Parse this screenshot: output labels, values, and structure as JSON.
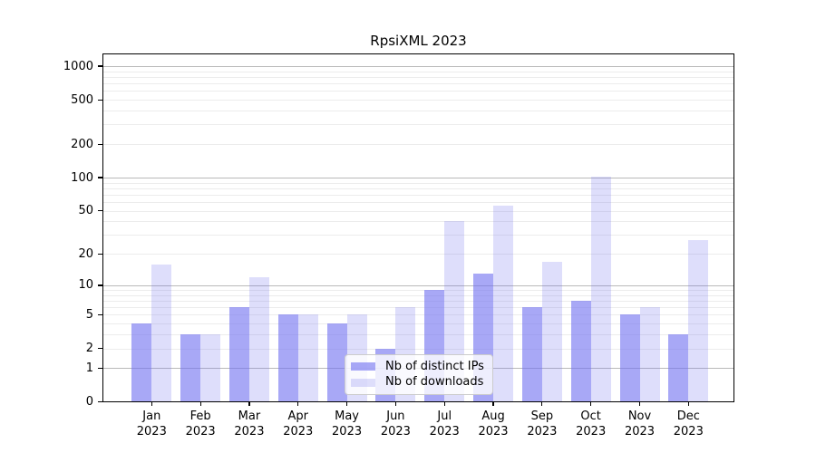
{
  "title": "RpsiXML 2023",
  "chart_data": {
    "type": "bar",
    "title": "RpsiXML 2023",
    "xlabel": "",
    "ylabel": "",
    "y_scale": "log1p",
    "ylim": [
      0,
      1290
    ],
    "grid": "major and minor horizontal gridlines, log decades",
    "legend_position": "inside lower center",
    "yticks": [
      0,
      1,
      2,
      5,
      10,
      20,
      50,
      100,
      200,
      500,
      1000
    ],
    "categories": [
      "Jan 2023",
      "Feb 2023",
      "Mar 2023",
      "Apr 2023",
      "May 2023",
      "Jun 2023",
      "Jul 2023",
      "Aug 2023",
      "Sep 2023",
      "Oct 2023",
      "Nov 2023",
      "Dec 2023"
    ],
    "series": [
      {
        "name": "Nb of distinct IPs",
        "color": "rgba(115,115,240,0.62)",
        "values": [
          4,
          3,
          6,
          5,
          4,
          2,
          9,
          13,
          6,
          7,
          5,
          3
        ]
      },
      {
        "name": "Nb of downloads",
        "color": "rgba(115,115,240,0.24)",
        "values": [
          16,
          3,
          12,
          5,
          5,
          6,
          40,
          56,
          17,
          102,
          6,
          27
        ]
      }
    ]
  },
  "colors": {
    "axis": "#000000",
    "grid_major": "#b9b9b9",
    "grid_minor": "#ececec",
    "legend_border": "#cccccc"
  }
}
